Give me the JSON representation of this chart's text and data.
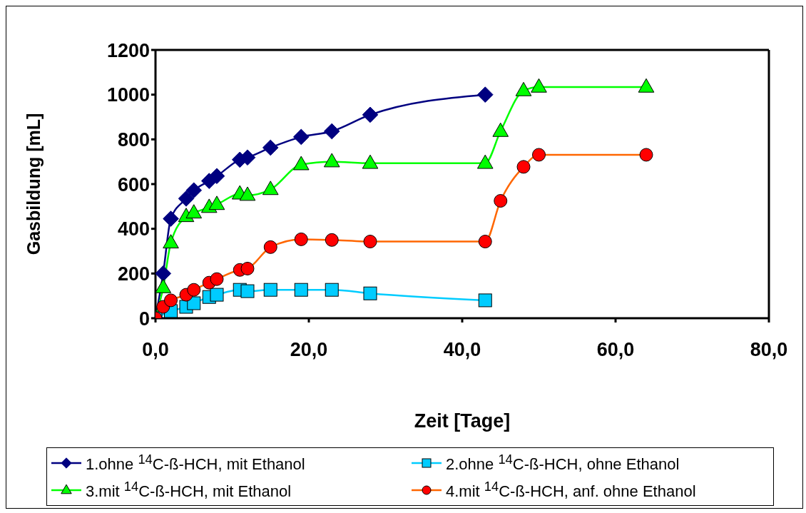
{
  "chart_data": {
    "type": "line",
    "xlabel": "Zeit [Tage]",
    "ylabel": "Gasbildung [mL]",
    "xlim": [
      0,
      80
    ],
    "xticks": [
      {
        "value": 0,
        "label": "0,0"
      },
      {
        "value": 20,
        "label": "20,0"
      },
      {
        "value": 40,
        "label": "40,0"
      },
      {
        "value": 60,
        "label": "60,0"
      },
      {
        "value": 80,
        "label": "80,0"
      }
    ],
    "ylim": [
      0,
      1200
    ],
    "yticks": [
      0,
      200,
      400,
      600,
      800,
      1000,
      1200
    ],
    "legend": "bottom",
    "line_style": "solid",
    "series": [
      {
        "name": "1.ohne $^{14}$C-ß-HCH, mit Ethanol",
        "color": "#000080",
        "marker": "diamond",
        "x": [
          0,
          1,
          2,
          4,
          5,
          7,
          8,
          11,
          12,
          15,
          19,
          23,
          28,
          43
        ],
        "values": [
          0,
          200,
          445,
          535,
          572,
          614,
          636,
          709,
          719,
          763,
          811,
          836,
          910,
          1000
        ]
      },
      {
        "name": "2.ohne $^{14}$C-ß-HCH, ohne Ethanol",
        "color": "#00ccff",
        "marker": "square",
        "x": [
          0,
          2,
          4,
          5,
          7,
          8,
          11,
          12,
          15,
          19,
          23,
          28,
          43
        ],
        "values": [
          0,
          32,
          51,
          67,
          95,
          105,
          127,
          121,
          127,
          127,
          127,
          111,
          80
        ]
      },
      {
        "name": "3.mit $^{14}$C-ß-HCH, mit Ethanol",
        "color": "#00ff00",
        "marker": "triangle",
        "x": [
          0,
          1,
          2,
          4,
          5,
          7,
          8,
          11,
          12,
          15,
          19,
          23,
          28,
          43,
          45,
          48,
          50,
          64
        ],
        "values": [
          0,
          137,
          337,
          455,
          471,
          496,
          509,
          556,
          550,
          576,
          687,
          700,
          693,
          693,
          836,
          1018,
          1034,
          1034
        ]
      },
      {
        "name": "4.mit $^{14}$C-ß-HCH, anf. ohne Ethanol",
        "color": "#ff6600",
        "marker": "circle",
        "x": [
          0,
          1,
          2,
          4,
          5,
          7,
          8,
          11,
          12,
          15,
          19,
          23,
          28,
          43,
          45,
          48,
          50,
          64
        ],
        "values": [
          0,
          51,
          80,
          105,
          127,
          159,
          175,
          216,
          222,
          318,
          353,
          350,
          343,
          343,
          525,
          677,
          731,
          731
        ]
      }
    ]
  }
}
